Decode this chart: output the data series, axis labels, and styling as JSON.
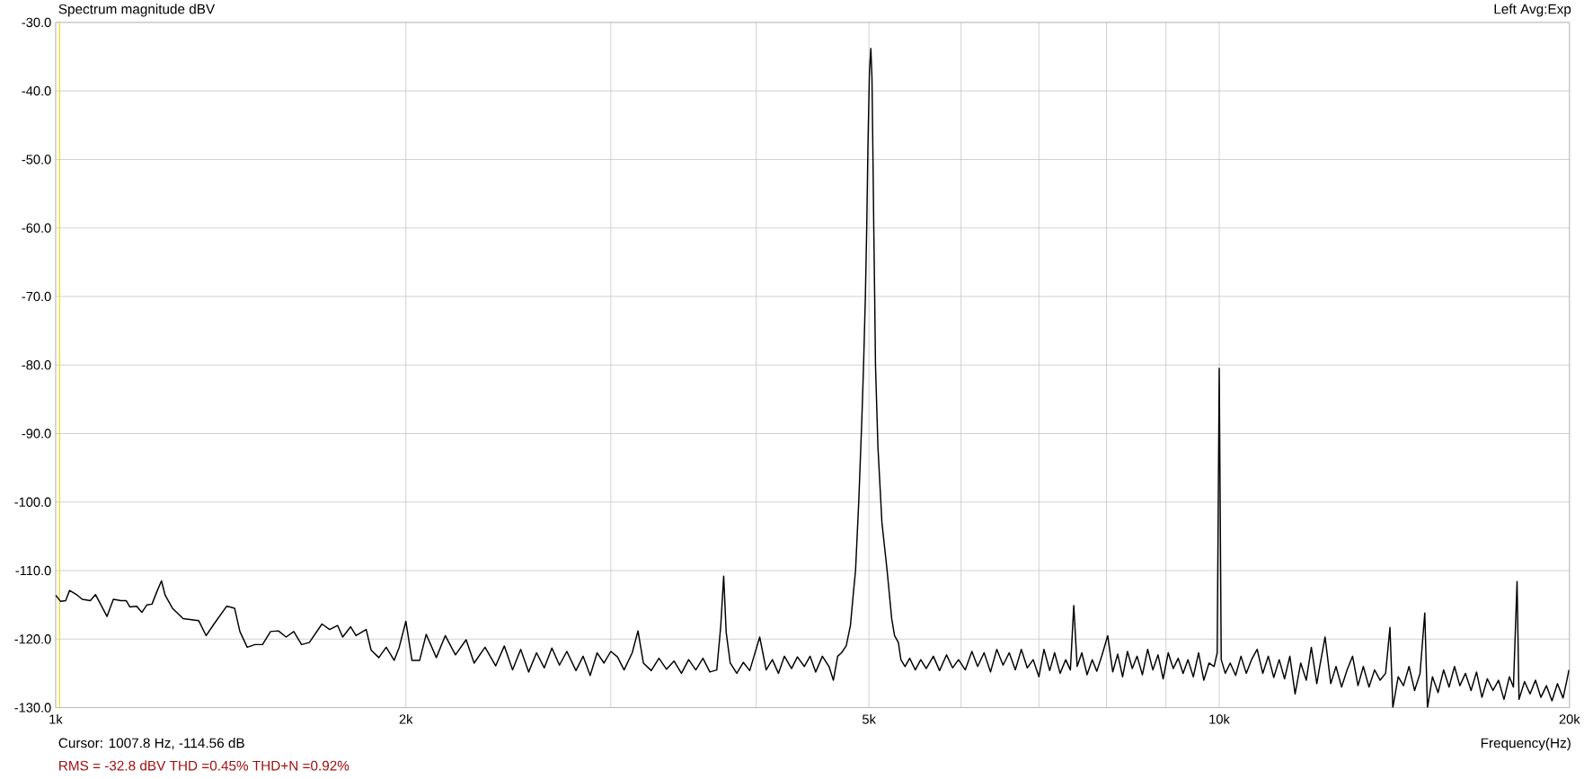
{
  "chart_data": {
    "type": "line",
    "title": "Spectrum magnitude dBV",
    "xlabel": "Frequency(Hz)",
    "annotations": [
      "Left  Avg:Exp",
      "Cursor:  1007.8 Hz, -114.56 dB",
      "RMS =  -32.8 dBV   THD =0.45%   THD+N =0.92%"
    ],
    "log": "x",
    "grid": true,
    "marker": "none",
    "line_style": "solid",
    "xlim": [
      1000,
      20000
    ],
    "ylim": [
      -130,
      -30
    ],
    "xticks": [
      {
        "value": 1000,
        "label": "1k"
      },
      {
        "value": 2000,
        "label": "2k"
      },
      {
        "value": 3000,
        "label": null
      },
      {
        "value": 4000,
        "label": null
      },
      {
        "value": 5000,
        "label": "5k"
      },
      {
        "value": 6000,
        "label": null
      },
      {
        "value": 7000,
        "label": null
      },
      {
        "value": 8000,
        "label": null
      },
      {
        "value": 9000,
        "label": null
      },
      {
        "value": 10000,
        "label": "10k"
      },
      {
        "value": 20000,
        "label": "20k"
      }
    ],
    "yticks": [
      {
        "value": -30,
        "label": "-30.0"
      },
      {
        "value": -40,
        "label": "-40.0"
      },
      {
        "value": -50,
        "label": "-50.0"
      },
      {
        "value": -60,
        "label": "-60.0"
      },
      {
        "value": -70,
        "label": "-70.0"
      },
      {
        "value": -80,
        "label": "-80.0"
      },
      {
        "value": -90,
        "label": "-90.0"
      },
      {
        "value": -100,
        "label": "-100.0"
      },
      {
        "value": -110,
        "label": "-110.0"
      },
      {
        "value": -120,
        "label": "-120.0"
      },
      {
        "value": -130,
        "label": "-130.0"
      }
    ],
    "ref_lines": [
      {
        "axis": "x",
        "value": 1007.8,
        "color": "#f0dc00"
      }
    ],
    "x": [
      1000,
      1010,
      1020,
      1028,
      1044,
      1054,
      1071,
      1082,
      1096,
      1107,
      1121,
      1138,
      1150,
      1158,
      1174,
      1186,
      1198,
      1210,
      1223,
      1233,
      1242,
      1260,
      1287,
      1327,
      1347,
      1368,
      1403,
      1425,
      1440,
      1461,
      1484,
      1506,
      1530,
      1554,
      1578,
      1602,
      1627,
      1652,
      1694,
      1720,
      1747,
      1765,
      1793,
      1812,
      1849,
      1867,
      1896,
      1924,
      1954,
      1974,
      2000,
      2024,
      2055,
      2082,
      2124,
      2162,
      2206,
      2253,
      2289,
      2339,
      2389,
      2430,
      2470,
      2510,
      2550,
      2590,
      2630,
      2670,
      2710,
      2750,
      2800,
      2840,
      2880,
      2920,
      2960,
      3000,
      3040,
      3080,
      3130,
      3166,
      3200,
      3250,
      3300,
      3350,
      3400,
      3450,
      3500,
      3550,
      3600,
      3650,
      3700,
      3730,
      3751,
      3770,
      3800,
      3850,
      3900,
      3950,
      4028,
      4080,
      4130,
      4180,
      4230,
      4290,
      4340,
      4400,
      4450,
      4500,
      4560,
      4620,
      4660,
      4700,
      4736,
      4780,
      4820,
      4850,
      4869,
      4900,
      4930,
      4947,
      4965,
      4978,
      4990,
      5005,
      5019,
      5030,
      5040,
      5048,
      5057,
      5065,
      5090,
      5130,
      5183,
      5230,
      5260,
      5300,
      5326,
      5370,
      5420,
      5480,
      5540,
      5600,
      5680,
      5750,
      5830,
      5900,
      5970,
      6050,
      6130,
      6200,
      6280,
      6360,
      6440,
      6520,
      6600,
      6680,
      6760,
      6840,
      6920,
      7000,
      7070,
      7150,
      7220,
      7300,
      7380,
      7450,
      7500,
      7550,
      7620,
      7700,
      7780,
      7850,
      7930,
      8020,
      8100,
      8180,
      8260,
      8340,
      8420,
      8500,
      8590,
      8680,
      8770,
      8860,
      8950,
      9040,
      9130,
      9220,
      9310,
      9400,
      9500,
      9600,
      9700,
      9800,
      9900,
      9960,
      10000,
      10040,
      10120,
      10220,
      10330,
      10440,
      10550,
      10660,
      10780,
      10900,
      11020,
      11140,
      11260,
      11380,
      11500,
      11620,
      11750,
      11880,
      12000,
      12130,
      12200,
      12330,
      12470,
      12600,
      12740,
      12880,
      13020,
      13160,
      13300,
      13450,
      13600,
      13750,
      13900,
      14020,
      14100,
      14250,
      14400,
      14560,
      14720,
      14880,
      15020,
      15100,
      15250,
      15420,
      15590,
      15760,
      15930,
      16100,
      16280,
      16460,
      16640,
      16820,
      17000,
      17190,
      17380,
      17570,
      17760,
      17900,
      18030,
      18100,
      18300,
      18500,
      18700,
      18900,
      19110,
      19320,
      19530,
      19750,
      19900,
      19980
    ],
    "series": [
      {
        "color": "#000000",
        "values": [
          -113.6,
          -114.5,
          -114.4,
          -112.9,
          -113.6,
          -114.2,
          -114.4,
          -113.5,
          -115.3,
          -116.7,
          -114.2,
          -114.4,
          -114.4,
          -115.3,
          -115.2,
          -116.1,
          -115.0,
          -114.9,
          -112.9,
          -111.5,
          -113.6,
          -115.5,
          -117.0,
          -117.3,
          -119.5,
          -117.8,
          -115.2,
          -115.5,
          -118.9,
          -121.2,
          -120.8,
          -120.8,
          -118.9,
          -118.8,
          -119.7,
          -118.9,
          -120.8,
          -120.5,
          -117.8,
          -118.6,
          -118.0,
          -119.7,
          -118.2,
          -119.5,
          -118.6,
          -121.6,
          -122.7,
          -121.2,
          -123.1,
          -121.2,
          -117.4,
          -123.1,
          -123.1,
          -119.3,
          -122.7,
          -119.5,
          -122.3,
          -120.1,
          -123.5,
          -121.2,
          -123.9,
          -121.0,
          -124.5,
          -121.5,
          -124.8,
          -122.0,
          -124.2,
          -121.3,
          -123.8,
          -121.8,
          -124.6,
          -122.5,
          -125.3,
          -122.0,
          -123.5,
          -121.8,
          -122.6,
          -124.5,
          -122.0,
          -118.8,
          -123.5,
          -124.6,
          -122.8,
          -124.4,
          -123.2,
          -125.0,
          -123.0,
          -124.5,
          -122.8,
          -124.8,
          -124.5,
          -118.0,
          -110.8,
          -119.0,
          -123.5,
          -125.0,
          -123.4,
          -124.6,
          -119.7,
          -124.5,
          -123.0,
          -125.0,
          -122.5,
          -124.3,
          -122.6,
          -124.0,
          -122.5,
          -124.8,
          -122.5,
          -124.0,
          -126.0,
          -122.5,
          -122.0,
          -121.0,
          -118.0,
          -113.0,
          -110.0,
          -100.0,
          -88.0,
          -80.0,
          -70.0,
          -60.0,
          -48.0,
          -37.0,
          -33.8,
          -38.0,
          -50.0,
          -60.0,
          -70.0,
          -80.0,
          -92.0,
          -103.0,
          -110.0,
          -117.0,
          -119.5,
          -120.5,
          -123.0,
          -124.0,
          -122.8,
          -124.5,
          -123.0,
          -124.3,
          -122.5,
          -124.6,
          -122.3,
          -124.2,
          -123.0,
          -124.5,
          -121.8,
          -124.0,
          -122.0,
          -124.8,
          -121.5,
          -123.8,
          -122.0,
          -124.5,
          -121.5,
          -124.2,
          -123.0,
          -125.5,
          -121.5,
          -124.6,
          -122.0,
          -125.0,
          -123.0,
          -124.5,
          -115.1,
          -124.0,
          -122.0,
          -125.2,
          -123.0,
          -124.7,
          -122.4,
          -119.5,
          -124.8,
          -122.2,
          -125.5,
          -121.8,
          -124.3,
          -122.5,
          -125.2,
          -121.5,
          -124.5,
          -122.3,
          -125.8,
          -122.0,
          -124.3,
          -122.8,
          -125.0,
          -123.0,
          -125.5,
          -122.0,
          -126.0,
          -123.5,
          -124.0,
          -122.0,
          -80.5,
          -123.0,
          -125.0,
          -123.5,
          -125.3,
          -122.5,
          -125.0,
          -123.0,
          -121.5,
          -125.0,
          -122.5,
          -125.6,
          -123.0,
          -125.8,
          -122.5,
          -128.0,
          -123.5,
          -126.0,
          -121.2,
          -126.5,
          -124.0,
          -119.7,
          -126.5,
          -124.0,
          -127.0,
          -124.5,
          -122.5,
          -126.8,
          -124.0,
          -127.0,
          -124.5,
          -126.0,
          -125.0,
          -118.3,
          -130.0,
          -125.5,
          -126.8,
          -124.0,
          -127.5,
          -125.0,
          -116.2,
          -130.0,
          -125.5,
          -127.8,
          -124.5,
          -127.0,
          -124.0,
          -126.8,
          -125.0,
          -127.5,
          -124.8,
          -128.5,
          -125.8,
          -127.5,
          -126.0,
          -128.8,
          -125.5,
          -127.0,
          -111.6,
          -128.8,
          -126.2,
          -128.0,
          -126.0,
          -128.5,
          -126.8,
          -129.0,
          -126.5,
          -128.6,
          -126.0,
          -124.5
        ]
      }
    ]
  }
}
